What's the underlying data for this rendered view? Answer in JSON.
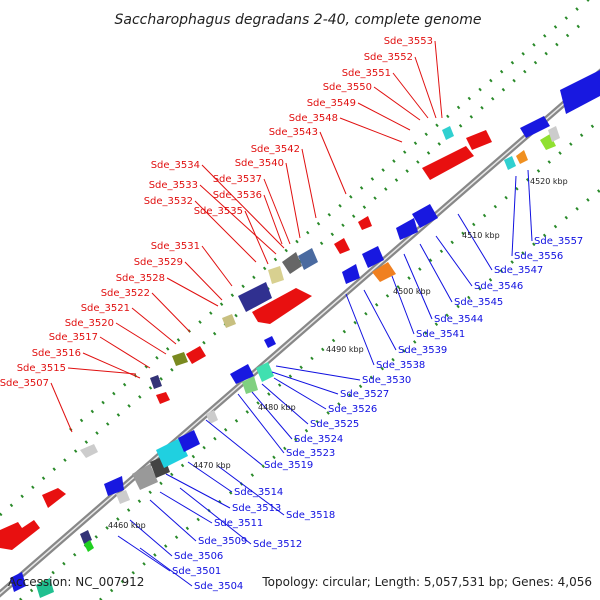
{
  "title": "Saccharophagus degradans 2-40, complete genome",
  "footer": {
    "accession": "Accession: NC_007912",
    "summary": "Topology: circular; Length: 5,057,531 bp; Genes: 4,056"
  },
  "colors": {
    "forward_label": "#e01010",
    "reverse_label": "#1010e0",
    "backbone": "#999999",
    "tick": "#2a8a2a"
  },
  "kbp_markers": [
    "4460 kbp",
    "4470 kbp",
    "4480 kbp",
    "4490 kbp",
    "4500 kbp",
    "4510 kbp",
    "4520 kbp"
  ],
  "forward_genes": [
    "Sde_3507",
    "Sde_3515",
    "Sde_3516",
    "Sde_3517",
    "Sde_3520",
    "Sde_3521",
    "Sde_3522",
    "Sde_3528",
    "Sde_3529",
    "Sde_3531",
    "Sde_3532",
    "Sde_3533",
    "Sde_3534",
    "Sde_3535",
    "Sde_3536",
    "Sde_3537",
    "Sde_3540",
    "Sde_3542",
    "Sde_3543",
    "Sde_3548",
    "Sde_3549",
    "Sde_3550",
    "Sde_3551",
    "Sde_3552",
    "Sde_3553"
  ],
  "reverse_genes": [
    "Sde_3501",
    "Sde_3504",
    "Sde_3506",
    "Sde_3509",
    "Sde_3511",
    "Sde_3512",
    "Sde_3513",
    "Sde_3514",
    "Sde_3518",
    "Sde_3519",
    "Sde_3523",
    "Sde_3524",
    "Sde_3525",
    "Sde_3526",
    "Sde_3527",
    "Sde_3530",
    "Sde_3538",
    "Sde_3539",
    "Sde_3541",
    "Sde_3544",
    "Sde_3545",
    "Sde_3546",
    "Sde_3547",
    "Sde_3556",
    "Sde_3557"
  ]
}
